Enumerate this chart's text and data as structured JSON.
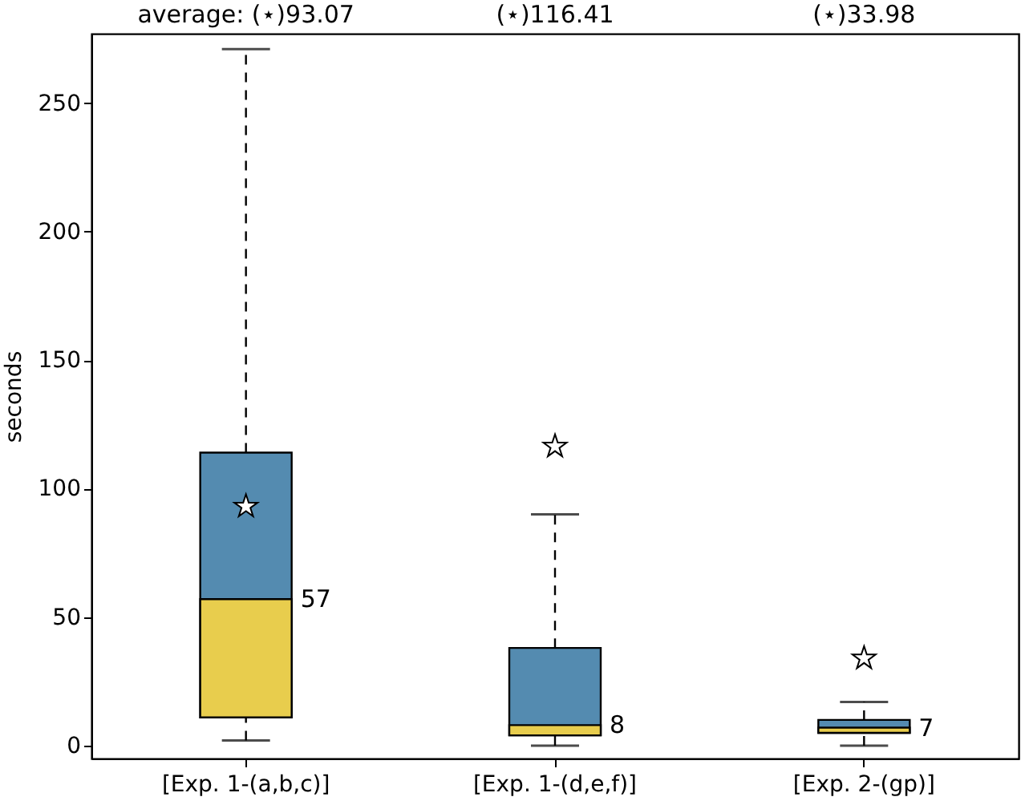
{
  "chart_data": {
    "type": "box",
    "ylabel": "seconds",
    "categories": [
      "[Exp. 1-(a,b,c)]",
      "[Exp. 1-(d,e,f)]",
      "[Exp. 2-(gp)]"
    ],
    "series": [
      {
        "color": "#548bb0",
        "boxes": [
          {
            "low": 2,
            "q1": 11,
            "median": 57,
            "q3": 114,
            "high": 271,
            "mean": 93.07
          },
          {
            "low": 0,
            "q1": 4,
            "median": 8,
            "q3": 38,
            "high": 90,
            "mean": 116.41
          },
          {
            "low": 0,
            "q1": 5,
            "median": 7,
            "q3": 10,
            "high": 17,
            "mean": 33.98
          }
        ]
      }
    ],
    "colors": [
      "#e8cd4d",
      "#e8cd4d",
      "#e8cd4d"
    ],
    "value_labels": [
      "57",
      "8",
      "7"
    ],
    "marker": "star",
    "ylim": [
      -5,
      277
    ],
    "yticks": [
      0,
      50,
      100,
      150,
      200,
      250
    ],
    "annotations": [
      "average:  (⋆)93.07",
      "(⋆)116.41",
      "(⋆)33.98"
    ]
  }
}
